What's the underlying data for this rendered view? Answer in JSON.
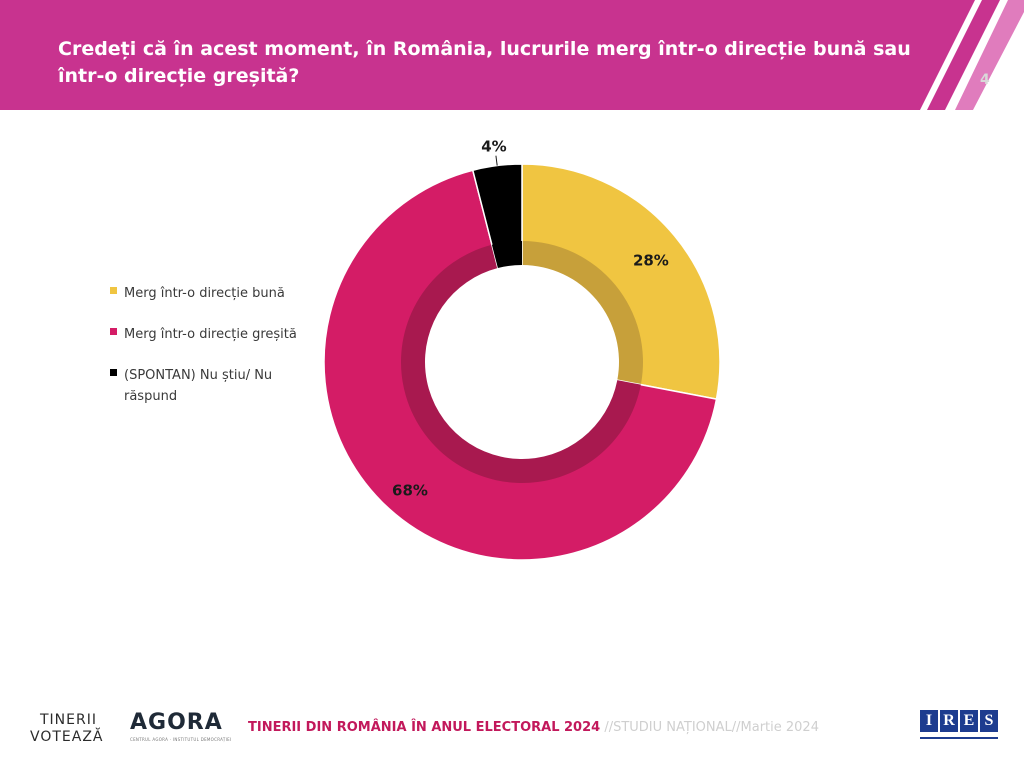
{
  "header": {
    "title": "Credeți că în acest moment, în România, lucrurile merg într-o direcție bună sau într-o direcție greșită?",
    "page_number": "4",
    "colors": {
      "primary": "#c8338f",
      "light": "#e07cbd"
    }
  },
  "chart_data": {
    "type": "pie",
    "style": "donut",
    "series": [
      {
        "name": "Merg într-o direcție bună",
        "value": 28,
        "label": "28%",
        "color": "#f0c541",
        "inner_color": "#c7a03a"
      },
      {
        "name": "Merg într-o direcție greșită",
        "value": 68,
        "label": "68%",
        "color": "#d41c66",
        "inner_color": "#a8194f"
      },
      {
        "name": "(SPONTAN) Nu știu/ Nu răspund",
        "value": 4,
        "label": "4%",
        "color": "#000000",
        "inner_color": "#000000"
      }
    ],
    "legend_position": "left"
  },
  "legend": {
    "items": [
      {
        "label": "Merg într-o direcție bună",
        "color": "#f0c541"
      },
      {
        "label": "Merg într-o direcție greșită",
        "color": "#d41c66"
      },
      {
        "label": "(SPONTAN) Nu știu/ Nu răspund",
        "color": "#000000"
      }
    ]
  },
  "footer": {
    "logo_tinerii": {
      "line1": "TINERII",
      "line2": "VOTEAZĂ"
    },
    "logo_agora": {
      "word": "AGORA",
      "tagline": "CENTRUL AGORA · INSTITUTUL DEMOCRAȚIEI"
    },
    "main_text": "TINERII DIN ROMÂNIA ÎN ANUL ELECTORAL 2024",
    "sub_text": " //STUDIU NAȚIONAL//Martie 2024",
    "ires": {
      "letters": [
        "I",
        "R",
        "E",
        "S"
      ],
      "color": "#1d3c8f"
    }
  }
}
